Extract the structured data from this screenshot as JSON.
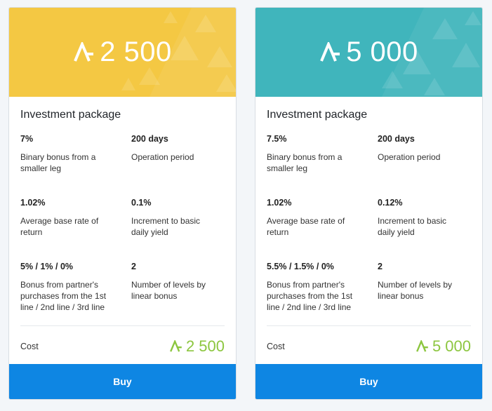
{
  "currency_icon": "aeternity-icon",
  "colors": {
    "banner_yellow": "#f4c843",
    "banner_teal": "#40b5bc",
    "cost_green": "#8cc63f",
    "buy_blue": "#0e86e3"
  },
  "packages": [
    {
      "banner_amount": "2 500",
      "title": "Investment package",
      "stats": [
        {
          "value": "7%",
          "label": "Binary bonus from a smaller leg"
        },
        {
          "value": "200 days",
          "label": "Operation period"
        },
        {
          "value": "1.02%",
          "label": "Average base rate of return"
        },
        {
          "value": "0.1%",
          "label": "Increment to basic daily yield"
        },
        {
          "value": "5% / 1% / 0%",
          "label": "Bonus from partner's purchases from the 1st line / 2nd line / 3rd line"
        },
        {
          "value": "2",
          "label": "Number of levels by linear bonus"
        }
      ],
      "cost_label": "Cost",
      "cost_amount": "2 500",
      "buy_label": "Buy"
    },
    {
      "banner_amount": "5 000",
      "title": "Investment package",
      "stats": [
        {
          "value": "7.5%",
          "label": "Binary bonus from a smaller leg"
        },
        {
          "value": "200 days",
          "label": "Operation period"
        },
        {
          "value": "1.02%",
          "label": "Average base rate of return"
        },
        {
          "value": "0.12%",
          "label": "Increment to basic daily yield"
        },
        {
          "value": "5.5% / 1.5% / 0%",
          "label": "Bonus from partner's purchases from the 1st line / 2nd line / 3rd line"
        },
        {
          "value": "2",
          "label": "Number of levels by linear bonus"
        }
      ],
      "cost_label": "Cost",
      "cost_amount": "5 000",
      "buy_label": "Buy"
    }
  ]
}
